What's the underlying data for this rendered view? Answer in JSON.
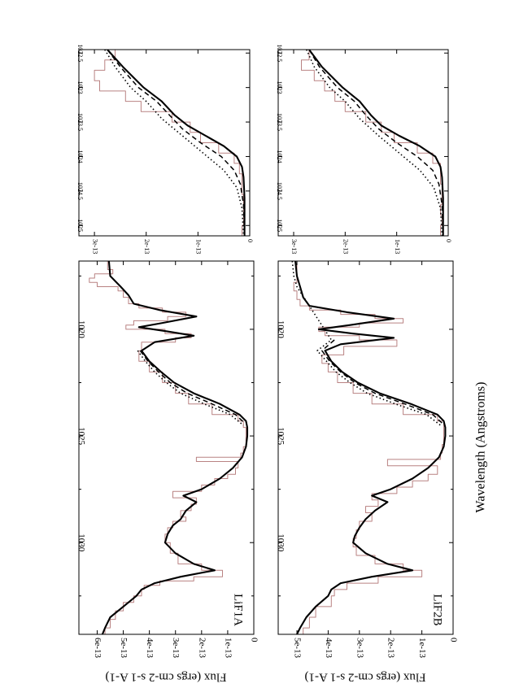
{
  "figure": {
    "orientation": "rotated-90",
    "shared_xlabel": "Wavelength (Angstroms)",
    "shared_ylabel": "Flux (ergs cm-2 s-1 A-1)",
    "colors": {
      "observed": "#b98282",
      "model": "#000000",
      "axes": "#000000"
    }
  },
  "chart_data": [
    {
      "type": "line",
      "panel": "LiF1A main",
      "annotation": "LiF1A",
      "xlabel": "",
      "ylabel": "Flux (ergs cm-2 s-1 A-1)",
      "xlim": [
        1016.8,
        1034.3
      ],
      "ylim": [
        0,
        6.7e-13
      ],
      "xticks": [
        1020,
        1025,
        1030
      ],
      "xtick_labels": [
        "1020",
        "1025",
        "1030"
      ],
      "yticks": [
        0,
        1e-13,
        2e-13,
        3e-13,
        4e-13,
        5e-13,
        6e-13
      ],
      "ytick_labels": [
        "0",
        "1e-13",
        "2e-13",
        "3e-13",
        "4e-13",
        "5e-13",
        "6e-13"
      ],
      "series": [
        {
          "style": "observed-histogram",
          "x": [
            1016.8,
            1017.2,
            1017.4,
            1017.6,
            1017.8,
            1018.0,
            1018.2,
            1018.5,
            1018.8,
            1019.0,
            1019.2,
            1019.4,
            1019.6,
            1019.8,
            1020.0,
            1020.2,
            1020.4,
            1020.6,
            1021.0,
            1021.5,
            1022.0,
            1022.5,
            1023.0,
            1023.5,
            1024.0,
            1024.3,
            1024.6,
            1025.0,
            1025.5,
            1025.8,
            1026.0,
            1026.2,
            1026.5,
            1026.8,
            1027.0,
            1027.3,
            1027.6,
            1027.9,
            1028.2,
            1028.5,
            1028.8,
            1029.0,
            1029.3,
            1029.6,
            1030.0,
            1030.5,
            1031.0,
            1031.3,
            1031.6,
            1031.8,
            1032.0,
            1032.2,
            1032.5,
            1032.8,
            1033.2,
            1033.6,
            1034.0,
            1034.3
          ],
          "values": [
            5.6e-13,
            5.4e-13,
            6.1e-13,
            6.3e-13,
            6e-13,
            5.2e-13,
            5e-13,
            4.8e-13,
            4.4e-13,
            3.5e-13,
            2.6e-13,
            3.3e-13,
            4.6e-13,
            4.9e-13,
            3.4e-13,
            2.4e-13,
            3e-13,
            4.3e-13,
            4.4e-13,
            4e-13,
            3.5e-13,
            3e-13,
            2.5e-13,
            1.6e-13,
            6e-14,
            4e-14,
            3e-14,
            3e-14,
            4e-14,
            5e-14,
            2.2e-13,
            6e-14,
            7e-14,
            1e-13,
            1.5e-13,
            2e-13,
            3.1e-13,
            2.2e-13,
            2.4e-13,
            2.8e-13,
            2.6e-13,
            3.1e-13,
            3.3e-13,
            3.4e-13,
            3.2e-13,
            2.9e-13,
            2e-13,
            1.2e-13,
            2.3e-13,
            3.6e-13,
            4.2e-13,
            4.3e-13,
            4.6e-13,
            5e-13,
            5.3e-13,
            5.5e-13,
            5.7e-13,
            5.8e-13
          ]
        },
        {
          "style": "model-solid",
          "x": [
            1016.8,
            1017.5,
            1018.0,
            1018.4,
            1018.8,
            1019.1,
            1019.4,
            1019.7,
            1019.9,
            1020.1,
            1020.3,
            1020.6,
            1021.0,
            1021.5,
            1022.0,
            1022.5,
            1023.0,
            1023.5,
            1024.0,
            1024.3,
            1024.6,
            1025.0,
            1025.5,
            1026.0,
            1026.5,
            1027.0,
            1027.5,
            1027.8,
            1028.1,
            1028.5,
            1028.9,
            1029.2,
            1029.6,
            1030.0,
            1030.5,
            1031.0,
            1031.3,
            1031.6,
            1031.9,
            1032.2,
            1032.5,
            1033.0,
            1033.5,
            1034.0,
            1034.3
          ],
          "values": [
            5.55e-13,
            5.5e-13,
            5.1e-13,
            4.8e-13,
            4.6e-13,
            3.6e-13,
            2.2e-13,
            3.5e-13,
            4.4e-13,
            3.3e-13,
            2.3e-13,
            3.8e-13,
            4.3e-13,
            4e-13,
            3.55e-13,
            3.05e-13,
            2.3e-13,
            1.3e-13,
            5.5e-14,
            3e-14,
            2.5e-14,
            2.5e-14,
            3e-14,
            4.5e-14,
            8e-14,
            1.3e-13,
            2e-13,
            2.7e-13,
            2.2e-13,
            2.6e-13,
            2.8e-13,
            3.1e-13,
            3.3e-13,
            3.4e-13,
            3e-13,
            2.3e-13,
            1.5e-13,
            2.8e-13,
            3.8e-13,
            4.3e-13,
            4.5e-13,
            5e-13,
            5.5e-13,
            5.7e-13,
            5.8e-13
          ]
        },
        {
          "style": "model-dashed",
          "x": [
            1021.0,
            1021.5,
            1022.0,
            1022.5,
            1023.0,
            1023.5,
            1024.0,
            1024.4
          ],
          "values": [
            4.35e-13,
            4.05e-13,
            3.65e-13,
            3.2e-13,
            2.55e-13,
            1.6e-13,
            7e-14,
            3.5e-14
          ]
        },
        {
          "style": "model-dotted",
          "x": [
            1021.0,
            1021.5,
            1022.0,
            1022.5,
            1023.0,
            1023.5,
            1024.0,
            1024.5
          ],
          "values": [
            4.45e-13,
            4.15e-13,
            3.8e-13,
            3.35e-13,
            2.8e-13,
            1.9e-13,
            9e-14,
            4e-14
          ]
        }
      ]
    },
    {
      "type": "line",
      "panel": "LiF1A zoom",
      "xlabel": "",
      "ylabel": "",
      "xlim": [
        1022.45,
        1025.15
      ],
      "ylim": [
        0,
        3.3e-13
      ],
      "xticks": [
        1022.5,
        1023,
        1023.5,
        1024,
        1024.5,
        1025
      ],
      "xtick_labels": [
        "1022.5",
        "1023",
        "1023.5",
        "1024",
        "1024.5",
        "1025"
      ],
      "yticks": [
        0,
        1e-13,
        2e-13,
        3e-13
      ],
      "ytick_labels": [
        "0",
        "1e-13",
        "2e-13",
        "3e-13"
      ],
      "series": [
        {
          "style": "observed-histogram",
          "x": [
            1022.45,
            1022.6,
            1022.75,
            1022.9,
            1023.05,
            1023.2,
            1023.35,
            1023.5,
            1023.65,
            1023.8,
            1023.95,
            1024.1,
            1024.25,
            1024.4,
            1024.55,
            1024.7,
            1024.85,
            1025.0,
            1025.15
          ],
          "values": [
            2.6e-13,
            2.8e-13,
            3e-13,
            2.9e-13,
            2.4e-13,
            2.1e-13,
            1.5e-13,
            1.15e-13,
            9.5e-14,
            6e-14,
            3e-14,
            2e-14,
            1.5e-14,
            1.5e-14,
            1.2e-14,
            1.2e-14,
            1.2e-14,
            1.5e-14,
            1.5e-14
          ]
        },
        {
          "style": "model-solid",
          "x": [
            1022.45,
            1022.7,
            1023.0,
            1023.2,
            1023.4,
            1023.55,
            1023.7,
            1023.85,
            1024.0,
            1024.15,
            1024.3,
            1024.6,
            1024.9,
            1025.15
          ],
          "values": [
            2.75e-13,
            2.45e-13,
            2.05e-13,
            1.7e-13,
            1.45e-13,
            1.2e-13,
            8.5e-14,
            5e-14,
            2.5e-14,
            1.5e-14,
            1.2e-14,
            1e-14,
            1e-14,
            1e-14
          ]
        },
        {
          "style": "model-dashed",
          "x": [
            1022.45,
            1022.7,
            1023.0,
            1023.2,
            1023.4,
            1023.6,
            1023.8,
            1024.0,
            1024.2,
            1024.4,
            1024.7,
            1025.15
          ],
          "values": [
            2.75e-13,
            2.5e-13,
            2.15e-13,
            1.8e-13,
            1.55e-13,
            1.3e-13,
            9.5e-14,
            5.5e-14,
            3e-14,
            1.8e-14,
            1.2e-14,
            1e-14
          ]
        },
        {
          "style": "model-dotted",
          "x": [
            1022.45,
            1022.7,
            1023.0,
            1023.2,
            1023.45,
            1023.7,
            1023.95,
            1024.2,
            1024.45,
            1024.75,
            1025.15
          ],
          "values": [
            2.8e-13,
            2.6e-13,
            2.3e-13,
            2e-13,
            1.7e-13,
            1.3e-13,
            9e-14,
            5e-14,
            2.5e-14,
            1.5e-14,
            1.2e-14
          ]
        }
      ]
    },
    {
      "type": "line",
      "panel": "LiF2B main",
      "annotation": "LiF2B",
      "xlabel": "Wavelength (Angstroms)",
      "ylabel": "Flux (ergs cm-2 s-1 A-1)",
      "xlim": [
        1016.8,
        1034.3
      ],
      "ylim": [
        0,
        5.6e-13
      ],
      "xticks": [
        1020,
        1025,
        1030
      ],
      "xtick_labels": [
        "1020",
        "1025",
        "1030"
      ],
      "yticks": [
        0,
        1e-13,
        2e-13,
        3e-13,
        4e-13,
        5e-13
      ],
      "ytick_labels": [
        "0",
        "1e-13",
        "2e-13",
        "3e-13",
        "4e-13",
        "5e-13"
      ],
      "series": [
        {
          "style": "observed-histogram",
          "x": [
            1016.8,
            1017.3,
            1017.8,
            1018.2,
            1018.6,
            1018.9,
            1019.1,
            1019.3,
            1019.5,
            1019.7,
            1019.9,
            1020.1,
            1020.3,
            1020.5,
            1020.8,
            1021.2,
            1021.6,
            1022.0,
            1022.5,
            1023.0,
            1023.5,
            1024.0,
            1024.3,
            1024.6,
            1025.0,
            1025.4,
            1025.8,
            1026.1,
            1026.4,
            1026.8,
            1027.1,
            1027.4,
            1027.7,
            1028.0,
            1028.3,
            1028.6,
            1029.0,
            1029.4,
            1029.8,
            1030.2,
            1030.6,
            1031.0,
            1031.3,
            1031.6,
            1031.9,
            1032.2,
            1032.5,
            1033.0,
            1033.5,
            1034.0,
            1034.3
          ],
          "values": [
            5e-13,
            5e-13,
            5.1e-13,
            5e-13,
            4.9e-13,
            4.6e-13,
            3.6e-13,
            2.5e-13,
            1.6e-13,
            3e-13,
            4.3e-13,
            4.1e-13,
            3e-13,
            1.8e-13,
            3.5e-13,
            4.2e-13,
            4e-13,
            3.7e-13,
            3.2e-13,
            2.6e-13,
            1.6e-13,
            5e-14,
            3e-14,
            3e-14,
            3e-14,
            3.5e-14,
            4e-14,
            2.1e-13,
            5e-14,
            8e-14,
            1.3e-13,
            1.8e-13,
            2.6e-13,
            2.4e-13,
            2.8e-13,
            2.6e-13,
            3e-13,
            3.1e-13,
            3.2e-13,
            3.1e-13,
            2.5e-13,
            1.6e-13,
            1e-13,
            2.4e-13,
            3.4e-13,
            3.8e-13,
            3.9e-13,
            4.4e-13,
            4.6e-13,
            4.8e-13,
            4.9e-13
          ]
        },
        {
          "style": "model-solid",
          "x": [
            1016.8,
            1017.5,
            1018.0,
            1018.5,
            1018.9,
            1019.2,
            1019.5,
            1019.8,
            1020.0,
            1020.2,
            1020.4,
            1020.7,
            1021.0,
            1021.5,
            1022.0,
            1022.5,
            1023.0,
            1023.5,
            1024.0,
            1024.3,
            1024.6,
            1025.0,
            1025.5,
            1026.0,
            1026.5,
            1027.0,
            1027.5,
            1027.8,
            1028.1,
            1028.5,
            1028.9,
            1029.3,
            1029.7,
            1030.0,
            1030.5,
            1031.0,
            1031.3,
            1031.6,
            1031.9,
            1032.2,
            1032.5,
            1033.0,
            1033.5,
            1034.0,
            1034.3
          ],
          "values": [
            5.05e-13,
            5e-13,
            4.9e-13,
            4.8e-13,
            4.6e-13,
            3.4e-13,
            1.9e-13,
            3.3e-13,
            4.3e-13,
            3.2e-13,
            1.9e-13,
            3.6e-13,
            4.1e-13,
            3.9e-13,
            3.55e-13,
            3.05e-13,
            2.35e-13,
            1.35e-13,
            5e-14,
            3e-14,
            2.5e-14,
            2.5e-14,
            3e-14,
            4.5e-14,
            8e-14,
            1.3e-13,
            2e-13,
            2.6e-13,
            2.1e-13,
            2.5e-13,
            2.8e-13,
            3e-13,
            3.15e-13,
            3.2e-13,
            2.8e-13,
            2.1e-13,
            1.3e-13,
            2.6e-13,
            3.6e-13,
            3.9e-13,
            4e-13,
            4.4e-13,
            4.7e-13,
            4.9e-13,
            5e-13
          ]
        },
        {
          "style": "model-dashed",
          "x": [
            1020.5,
            1021.0,
            1021.5,
            1022.0,
            1022.5,
            1023.0,
            1023.5,
            1024.0,
            1024.4
          ],
          "values": [
            3.8e-13,
            4.2e-13,
            3.95e-13,
            3.6e-13,
            3.15e-13,
            2.5e-13,
            1.55e-13,
            6.5e-14,
            3.5e-14
          ]
        },
        {
          "style": "model-dotted",
          "x": [
            1016.8,
            1017.5,
            1018.0,
            1020.5,
            1021.0,
            1021.5,
            1022.0,
            1022.5,
            1023.0,
            1023.5,
            1024.0,
            1024.5
          ],
          "values": [
            5.15e-13,
            5.1e-13,
            5e-13,
            3.9e-13,
            4.35e-13,
            4.05e-13,
            3.75e-13,
            3.3e-13,
            2.75e-13,
            1.85e-13,
            8.5e-14,
            4e-14
          ]
        }
      ]
    },
    {
      "type": "line",
      "panel": "LiF2B zoom",
      "xlabel": "",
      "ylabel": "",
      "xlim": [
        1022.45,
        1025.15
      ],
      "ylim": [
        0,
        3.3e-13
      ],
      "xticks": [
        1022.5,
        1023,
        1023.5,
        1024,
        1024.5,
        1025
      ],
      "xtick_labels": [
        "1022.5",
        "1023",
        "1023.5",
        "1024",
        "1024.5",
        "1025"
      ],
      "yticks": [
        0,
        1e-13,
        2e-13,
        3e-13
      ],
      "ytick_labels": [
        "0",
        "1e-13",
        "2e-13",
        "3e-13"
      ],
      "series": [
        {
          "style": "observed-histogram",
          "x": [
            1022.45,
            1022.6,
            1022.75,
            1022.9,
            1023.05,
            1023.2,
            1023.35,
            1023.5,
            1023.65,
            1023.8,
            1023.95,
            1024.1,
            1024.25,
            1024.4,
            1024.55,
            1024.7,
            1024.85,
            1025.0,
            1025.15
          ],
          "values": [
            2.7e-13,
            2.85e-13,
            2.6e-13,
            2.4e-13,
            2.2e-13,
            2e-13,
            1.6e-13,
            1.3e-13,
            1.05e-13,
            6e-14,
            3e-14,
            1.5e-14,
            1.5e-14,
            1.2e-14,
            1.2e-14,
            1.5e-14,
            1.2e-14,
            1.5e-14,
            1.2e-14
          ]
        },
        {
          "style": "model-solid",
          "x": [
            1022.45,
            1022.7,
            1023.0,
            1023.2,
            1023.4,
            1023.55,
            1023.7,
            1023.85,
            1024.0,
            1024.15,
            1024.3,
            1024.6,
            1024.9,
            1025.15
          ],
          "values": [
            2.7e-13,
            2.45e-13,
            2.05e-13,
            1.72e-13,
            1.5e-13,
            1.3e-13,
            9.5e-14,
            5.5e-14,
            2.5e-14,
            1.5e-14,
            1.2e-14,
            1e-14,
            1e-14,
            1e-14
          ]
        },
        {
          "style": "model-dashed",
          "x": [
            1022.45,
            1022.7,
            1023.0,
            1023.2,
            1023.4,
            1023.6,
            1023.8,
            1024.0,
            1024.2,
            1024.4,
            1024.7,
            1025.15
          ],
          "values": [
            2.7e-13,
            2.5e-13,
            2.15e-13,
            1.82e-13,
            1.6e-13,
            1.35e-13,
            1e-13,
            6e-14,
            3e-14,
            1.8e-14,
            1.2e-14,
            1e-14
          ]
        },
        {
          "style": "model-dotted",
          "x": [
            1022.45,
            1022.7,
            1023.0,
            1023.2,
            1023.45,
            1023.7,
            1023.95,
            1024.2,
            1024.45,
            1024.75,
            1025.15
          ],
          "values": [
            2.75e-13,
            2.6e-13,
            2.3e-13,
            2e-13,
            1.72e-13,
            1.35e-13,
            9.5e-14,
            5.5e-14,
            2.8e-14,
            1.5e-14,
            1.2e-14
          ]
        }
      ]
    }
  ]
}
